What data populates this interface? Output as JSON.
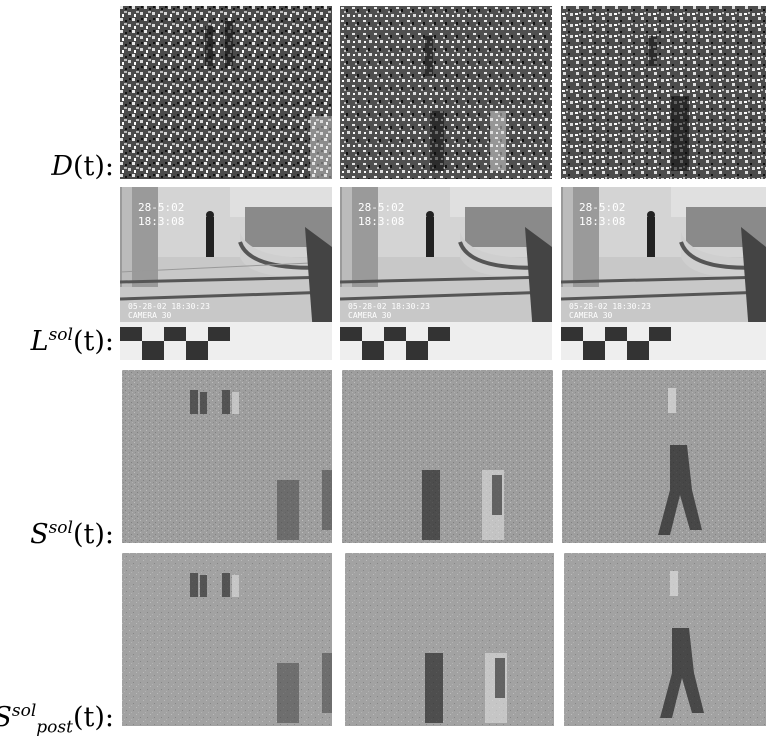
{
  "rows": [
    {
      "label_main": "D",
      "label_sup": "",
      "label_sub": "",
      "label_tail": "(t):"
    },
    {
      "label_main": "L",
      "label_sup": "sol",
      "label_sub": "",
      "label_tail": "(t):"
    },
    {
      "label_main": "S",
      "label_sup": "sol",
      "label_sub": "",
      "label_tail": "(t):"
    },
    {
      "label_main": "S",
      "label_sup": "sol",
      "label_sub": "post",
      "label_tail": "(t):"
    }
  ],
  "overlays": {
    "timestamp_top": "28-5:02",
    "timestamp_top2": "18:3:08",
    "camera_line1": "05-28-02 18:30:23",
    "camera_line2": "CAMERA 30"
  },
  "colors": {
    "noise_dark": "#1a1a1a",
    "noise_light": "#e6e6e6",
    "sparse_gray": "#9e9e9e"
  }
}
